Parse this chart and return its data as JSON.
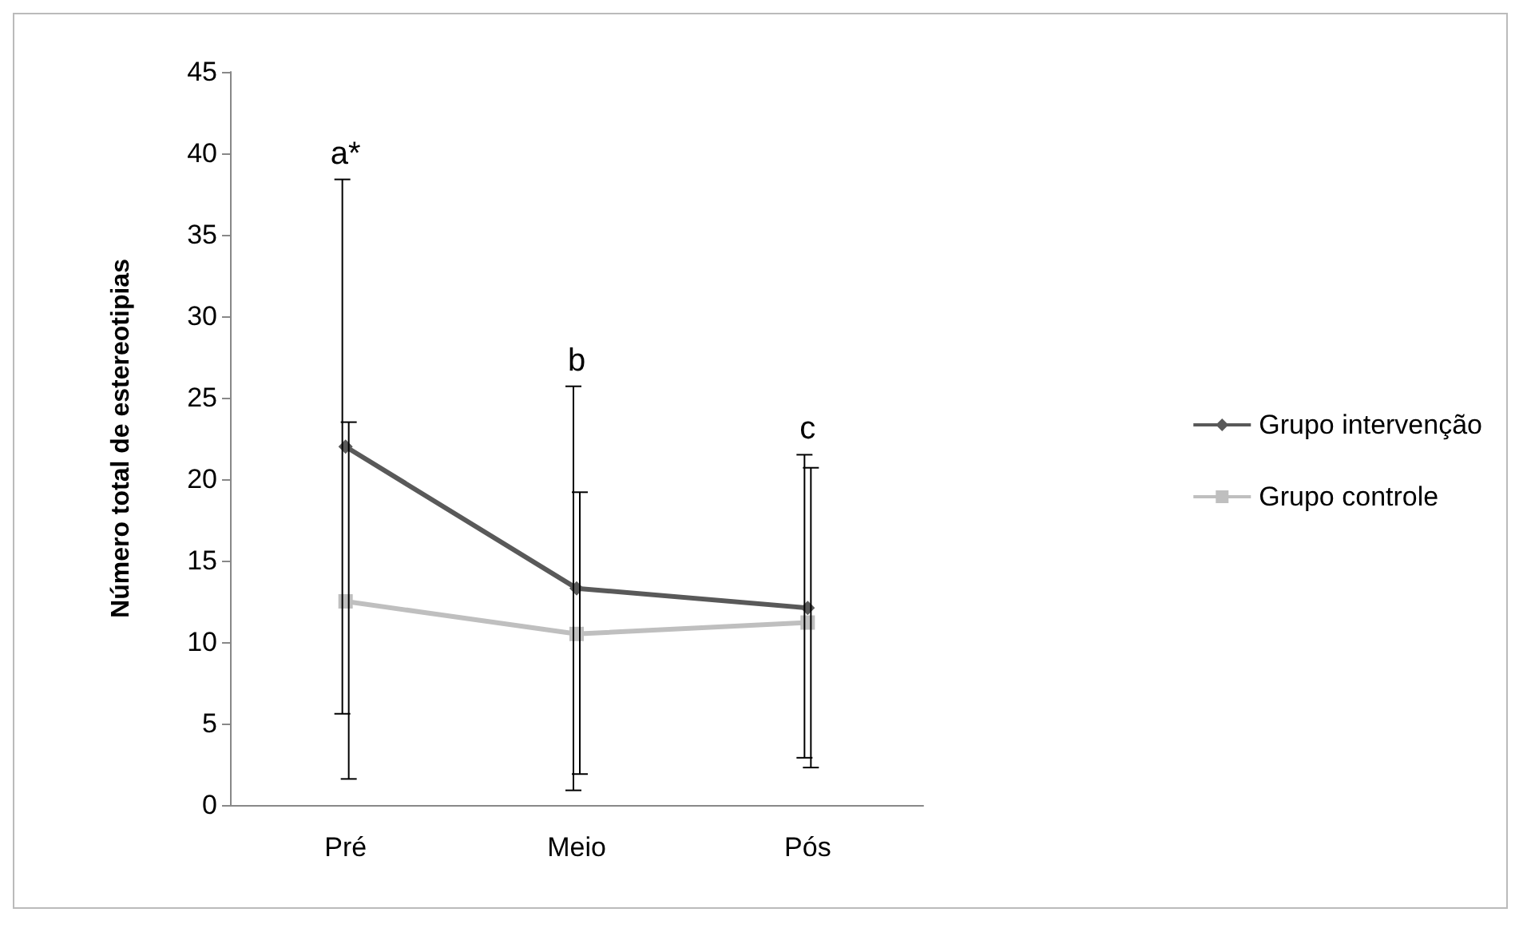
{
  "chart_data": {
    "type": "line",
    "ylabel": "Número total de estereotipias",
    "categories": [
      "Pré",
      "Meio",
      "Pós"
    ],
    "series": [
      {
        "name": "Grupo intervenção",
        "color": "#595959",
        "marker": "diamond",
        "values": [
          22,
          13.3,
          12.1
        ],
        "errors": [
          [
            5.6,
            38.4
          ],
          [
            0.9,
            25.7
          ],
          [
            2.9,
            21.5
          ]
        ]
      },
      {
        "name": "Grupo controle",
        "color": "#bfbfbf",
        "marker": "square",
        "values": [
          12.5,
          10.5,
          11.2
        ],
        "errors": [
          [
            1.6,
            23.5
          ],
          [
            1.9,
            19.2
          ],
          [
            2.3,
            20.7
          ]
        ]
      }
    ],
    "ylim": [
      0,
      45
    ],
    "yticks": [
      0,
      5,
      10,
      15,
      20,
      25,
      30,
      35,
      40,
      45
    ],
    "grid": false,
    "legend": "right",
    "annotations": [
      "a*",
      "b",
      "c"
    ]
  }
}
